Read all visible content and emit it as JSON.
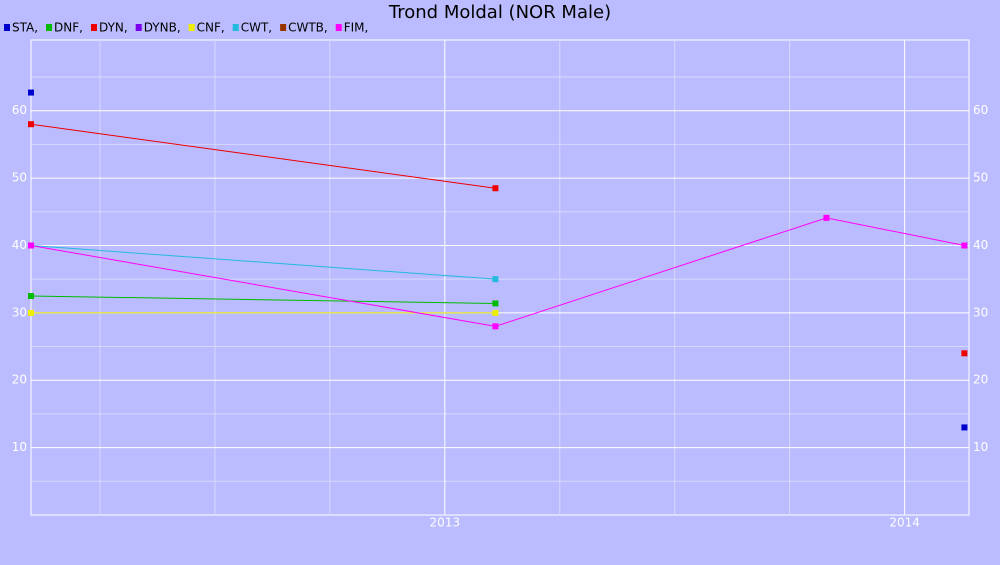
{
  "chart_data": {
    "type": "line",
    "title": "Trond Moldal (NOR Male)",
    "x": [
      2012.1,
      2013.11,
      2013.83,
      2014.13
    ],
    "xlim": [
      2012.1,
      2014.14
    ],
    "xticks": [
      2013,
      2014
    ],
    "x_minor_ticks": [
      2012.25,
      2012.5,
      2012.75,
      2013.25,
      2013.5,
      2013.75
    ],
    "ylim": [
      0,
      70.5
    ],
    "yticks": [
      10,
      20,
      30,
      40,
      50,
      60
    ],
    "y_minor_ticks": [
      5,
      15,
      25,
      35,
      45,
      55,
      65
    ],
    "grid": true,
    "series": [
      {
        "name": "STA,",
        "color": "#0000cc",
        "values": [
          62.7,
          null,
          null,
          13
        ]
      },
      {
        "name": "DNF,",
        "color": "#00bb00",
        "values": [
          32.5,
          31.4,
          null,
          null
        ]
      },
      {
        "name": "DYN,",
        "color": "#ee0000",
        "values": [
          58,
          48.5,
          null,
          24
        ]
      },
      {
        "name": "DYNB,",
        "color": "#7a00ee",
        "values": [
          null,
          null,
          null,
          null
        ]
      },
      {
        "name": "CNF,",
        "color": "#eeee00",
        "values": [
          30,
          30,
          null,
          null
        ]
      },
      {
        "name": "CWT,",
        "color": "#22bbdd",
        "values": [
          40,
          35,
          null,
          40
        ]
      },
      {
        "name": "CWTB,",
        "color": "#993300",
        "values": [
          null,
          null,
          null,
          null
        ]
      },
      {
        "name": "FIM,",
        "color": "#ff00ff",
        "values": [
          40,
          28,
          44.1,
          40
        ]
      }
    ]
  }
}
